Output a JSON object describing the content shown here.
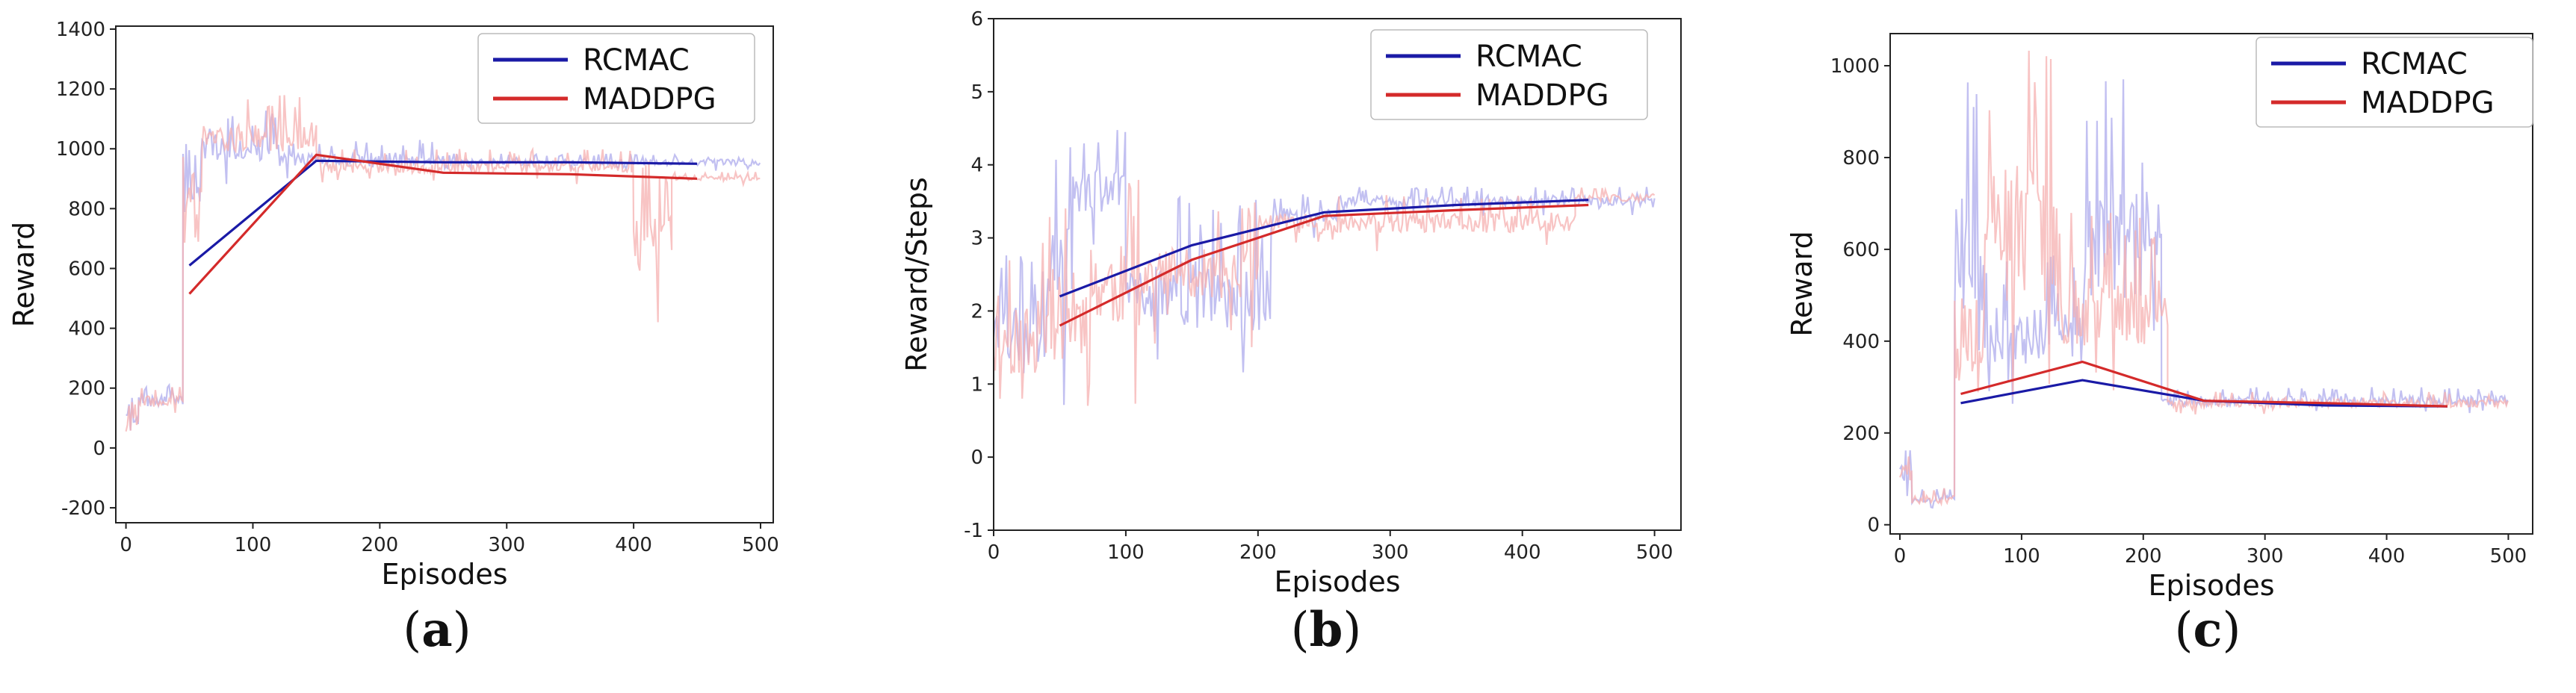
{
  "colors": {
    "rcmac": "#1a1aa6",
    "maddpg": "#d42a2a",
    "rcmac_raw": "#b7b5ef",
    "maddpg_raw": "#f6b0b0"
  },
  "legend": {
    "series": [
      "RCMAC",
      "MADDPG"
    ]
  },
  "chart_data": [
    {
      "type": "line",
      "label": "(a)",
      "label_parts": [
        "(",
        "a",
        ")"
      ],
      "xlabel": "Episodes",
      "ylabel": "Reward",
      "xlim": [
        -8,
        510
      ],
      "ylim": [
        -250,
        1410
      ],
      "xticks": [
        0,
        100,
        200,
        300,
        400,
        500
      ],
      "yticks": [
        -200,
        0,
        200,
        400,
        600,
        800,
        1000,
        1200,
        1400
      ],
      "series": [
        {
          "name": "RCMAC",
          "x": [
            50,
            150,
            250,
            350,
            450
          ],
          "values": [
            610,
            960,
            955,
            955,
            950
          ]
        },
        {
          "name": "MADDPG",
          "x": [
            50,
            150,
            250,
            350,
            450
          ],
          "values": [
            515,
            980,
            920,
            915,
            900
          ]
        }
      ],
      "raw": {
        "RCMAC": {
          "seed": 7,
          "segments": [
            [
              0,
              10,
              0,
              170
            ],
            [
              10,
              45,
              100,
              210
            ],
            [
              45,
              60,
              500,
              1340
            ],
            [
              60,
              120,
              880,
              1130
            ],
            [
              120,
              250,
              900,
              1030
            ],
            [
              250,
              500,
              925,
              985
            ]
          ]
        },
        "MADDPG": {
          "seed": 19,
          "segments": [
            [
              0,
              10,
              0,
              170
            ],
            [
              10,
              45,
              100,
              210
            ],
            [
              45,
              60,
              400,
              1280
            ],
            [
              60,
              150,
              900,
              1180
            ],
            [
              150,
              400,
              880,
              1000
            ],
            [
              400,
              430,
              400,
              960
            ],
            [
              430,
              500,
              880,
              925
            ]
          ]
        }
      }
    },
    {
      "type": "line",
      "label": "(b)",
      "label_parts": [
        "(",
        "b",
        ")"
      ],
      "xlabel": "Episodes",
      "ylabel": "Reward/Steps",
      "xlim": [
        0,
        520
      ],
      "ylim": [
        -1,
        6
      ],
      "xticks": [
        0,
        100,
        200,
        300,
        400,
        500
      ],
      "yticks": [
        -1,
        0,
        1,
        2,
        3,
        4,
        5,
        6
      ],
      "series": [
        {
          "name": "RCMAC",
          "x": [
            50,
            150,
            250,
            350,
            450
          ],
          "values": [
            2.2,
            2.9,
            3.35,
            3.45,
            3.52
          ]
        },
        {
          "name": "MADDPG",
          "x": [
            50,
            150,
            250,
            350,
            450
          ],
          "values": [
            1.8,
            2.7,
            3.3,
            3.38,
            3.45
          ]
        }
      ],
      "raw": {
        "RCMAC": {
          "seed": 3,
          "segments": [
            [
              0,
              40,
              0.3,
              2.9
            ],
            [
              40,
              60,
              0.6,
              4.5
            ],
            [
              60,
              100,
              2.8,
              4.5
            ],
            [
              100,
              210,
              0.8,
              3.6
            ],
            [
              210,
              260,
              3.0,
              3.6
            ],
            [
              260,
              500,
              3.3,
              3.7
            ]
          ]
        },
        "MADDPG": {
          "seed": 11,
          "segments": [
            [
              0,
              40,
              0.2,
              3.0
            ],
            [
              40,
              70,
              0.2,
              3.6
            ],
            [
              70,
              110,
              0.7,
              4.0
            ],
            [
              110,
              200,
              1.5,
              3.5
            ],
            [
              200,
              440,
              2.8,
              3.6
            ],
            [
              440,
              500,
              3.4,
              3.7
            ]
          ]
        }
      }
    },
    {
      "type": "line",
      "label": "(c)",
      "label_parts": [
        "(",
        "c",
        ")"
      ],
      "xlabel": "Episodes",
      "ylabel": "Reward",
      "xlim": [
        -8,
        520
      ],
      "ylim": [
        -20,
        1070
      ],
      "xticks": [
        0,
        100,
        200,
        300,
        400,
        500
      ],
      "yticks": [
        0,
        200,
        400,
        600,
        800,
        1000
      ],
      "series": [
        {
          "name": "RCMAC",
          "x": [
            50,
            150,
            250,
            350,
            450
          ],
          "values": [
            265,
            315,
            270,
            260,
            258
          ]
        },
        {
          "name": "MADDPG",
          "x": [
            50,
            150,
            250,
            350,
            450
          ],
          "values": [
            285,
            355,
            270,
            265,
            258
          ]
        }
      ],
      "raw": {
        "RCMAC": {
          "seed": 5,
          "segments": [
            [
              0,
              10,
              40,
              180
            ],
            [
              10,
              45,
              30,
              80
            ],
            [
              45,
              65,
              180,
              975
            ],
            [
              65,
              150,
              230,
              600
            ],
            [
              150,
              215,
              240,
              975
            ],
            [
              215,
              500,
              240,
              300
            ]
          ]
        },
        "MADDPG": {
          "seed": 23,
          "segments": [
            [
              0,
              10,
              40,
              180
            ],
            [
              10,
              45,
              30,
              80
            ],
            [
              45,
              70,
              180,
              500
            ],
            [
              70,
              130,
              250,
              1040
            ],
            [
              130,
              220,
              250,
              680
            ],
            [
              220,
              500,
              240,
              290
            ]
          ]
        }
      }
    }
  ]
}
